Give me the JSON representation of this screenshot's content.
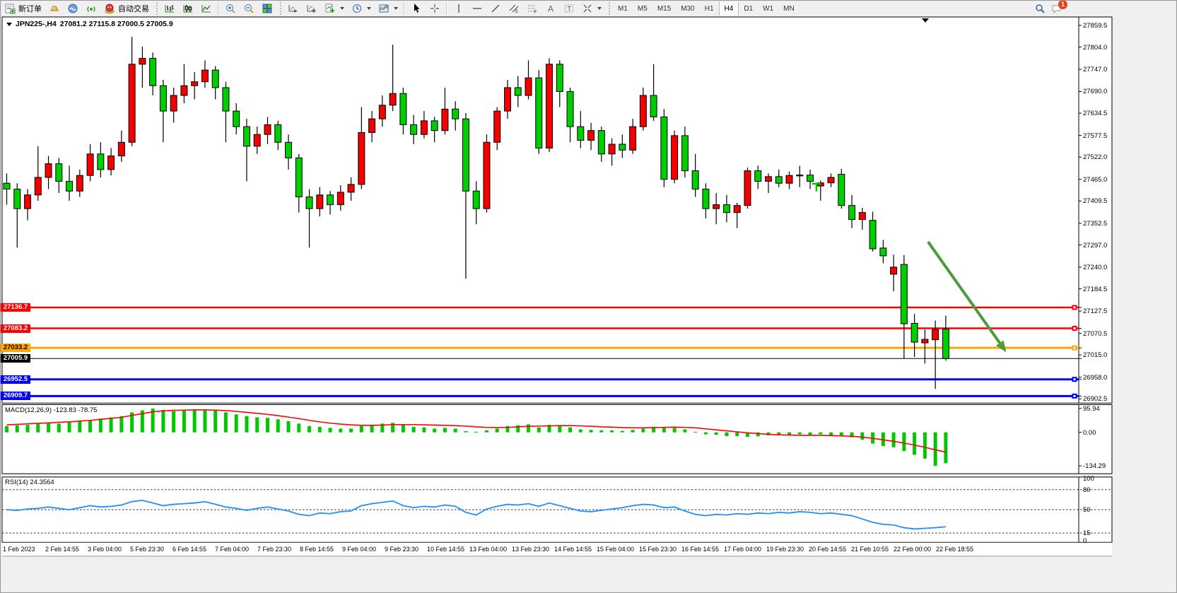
{
  "toolbar": {
    "new_order": "新订单",
    "autotrade": "自动交易",
    "timeframes": [
      "M1",
      "M5",
      "M15",
      "M30",
      "H1",
      "H4",
      "D1",
      "W1",
      "MN"
    ],
    "active_timeframe": "H4",
    "notification_count": "1",
    "icons": [
      "new-order-icon",
      "gold-ingot-icon",
      "accounts-icon",
      "signal-icon",
      "autotrade-icon",
      "bar-chart-icon",
      "candlestick-chart-icon",
      "line-chart-icon",
      "zoom-in-icon",
      "zoom-out-icon",
      "tile-windows-icon",
      "auto-scroll-icon",
      "chart-shift-icon",
      "indicators-icon",
      "periods-icon",
      "templates-icon",
      "cursor-icon",
      "crosshair-icon",
      "vertical-line-icon",
      "horizontal-line-icon",
      "trendline-icon",
      "channel-icon",
      "fibonacci-icon",
      "text-icon",
      "text-label-icon",
      "shapes-icon",
      "search-icon",
      "chat-icon"
    ]
  },
  "chart": {
    "symbol_label": "JPN225-,H4",
    "ohlc_text": "27081.2 27115.8 27000.5 27005.9",
    "colors": {
      "candle_up": "#f40000",
      "candle_down": "#00ce00",
      "candle_outline": "#000000",
      "macd_bar": "#00c800",
      "macd_signal": "#ff0000",
      "rsi_line": "#1e90ff",
      "arrow": "#4e9a3e",
      "marker_green": "#00cc00"
    }
  },
  "chart_data": {
    "type": "candlestick",
    "symbol": "JPN225-",
    "timeframe": "H4",
    "price_axis_ticks": [
      27859.5,
      27804.0,
      27747.0,
      27690.0,
      27634.5,
      27577.5,
      27522.0,
      27465.0,
      27409.5,
      27352.5,
      27297.0,
      27240.0,
      27184.5,
      27127.5,
      27070.5,
      27015.0,
      26958.0,
      26902.5
    ],
    "time_labels": [
      "1 Feb 2023",
      "2 Feb 14:55",
      "3 Feb 04:00",
      "5 Feb 23:30",
      "6 Feb 14:55",
      "7 Feb 04:00",
      "7 Feb 23:30",
      "8 Feb 14:55",
      "9 Feb 04:00",
      "9 Feb 23:30",
      "10 Feb 14:55",
      "13 Feb 04:00",
      "13 Feb 23:30",
      "14 Feb 14:55",
      "15 Feb 04:00",
      "15 Feb 23:30",
      "16 Feb 14:55",
      "17 Feb 04:00",
      "19 Feb 23:30",
      "20 Feb 14:55",
      "21 Feb 10:55",
      "22 Feb 00:00",
      "22 Feb 18:55"
    ],
    "hlines": [
      {
        "price": 27136.7,
        "label": "27136.7",
        "color": "#ff0000",
        "width": 2.5,
        "handles": true
      },
      {
        "price": 27083.2,
        "label": "27083.2",
        "color": "#ff0000",
        "width": 2.5,
        "handles": true
      },
      {
        "price": 27033.2,
        "label": "27033.2",
        "color": "#ffa500",
        "width": 3,
        "handles": true
      },
      {
        "price": 27005.9,
        "label": "27005.9",
        "color": "#000000",
        "width": 1,
        "handles": false,
        "role": "bid-line"
      },
      {
        "price": 26952.5,
        "label": "26952.5",
        "color": "#0000ff",
        "width": 3,
        "handles": true
      },
      {
        "price": 26909.7,
        "label": "26909.7",
        "color": "#0000ff",
        "width": 3,
        "handles": true
      }
    ],
    "candles": [
      [
        27455,
        27480,
        27400,
        27440
      ],
      [
        27440,
        27455,
        27290,
        27390
      ],
      [
        27390,
        27440,
        27360,
        27425
      ],
      [
        27425,
        27550,
        27410,
        27470
      ],
      [
        27470,
        27525,
        27440,
        27505
      ],
      [
        27505,
        27520,
        27430,
        27460
      ],
      [
        27460,
        27500,
        27410,
        27435
      ],
      [
        27435,
        27490,
        27420,
        27475
      ],
      [
        27475,
        27555,
        27460,
        27530
      ],
      [
        27530,
        27560,
        27470,
        27490
      ],
      [
        27490,
        27545,
        27475,
        27525
      ],
      [
        27525,
        27590,
        27510,
        27560
      ],
      [
        27560,
        27830,
        27550,
        27760
      ],
      [
        27760,
        27805,
        27700,
        27775
      ],
      [
        27775,
        27790,
        27680,
        27705
      ],
      [
        27705,
        27720,
        27560,
        27640
      ],
      [
        27640,
        27700,
        27610,
        27680
      ],
      [
        27680,
        27760,
        27660,
        27705
      ],
      [
        27705,
        27740,
        27670,
        27715
      ],
      [
        27715,
        27770,
        27700,
        27745
      ],
      [
        27745,
        27755,
        27670,
        27700
      ],
      [
        27700,
        27715,
        27560,
        27640
      ],
      [
        27640,
        27660,
        27580,
        27600
      ],
      [
        27600,
        27620,
        27460,
        27550
      ],
      [
        27550,
        27600,
        27530,
        27580
      ],
      [
        27580,
        27625,
        27555,
        27605
      ],
      [
        27605,
        27615,
        27540,
        27560
      ],
      [
        27560,
        27580,
        27490,
        27520
      ],
      [
        27520,
        27530,
        27380,
        27420
      ],
      [
        27420,
        27440,
        27290,
        27390
      ],
      [
        27390,
        27445,
        27370,
        27425
      ],
      [
        27425,
        27435,
        27375,
        27400
      ],
      [
        27400,
        27450,
        27385,
        27432
      ],
      [
        27432,
        27470,
        27410,
        27452
      ],
      [
        27452,
        27650,
        27440,
        27585
      ],
      [
        27585,
        27640,
        27560,
        27620
      ],
      [
        27620,
        27680,
        27600,
        27655
      ],
      [
        27655,
        27810,
        27640,
        27685
      ],
      [
        27685,
        27700,
        27580,
        27605
      ],
      [
        27605,
        27630,
        27555,
        27580
      ],
      [
        27580,
        27640,
        27570,
        27615
      ],
      [
        27615,
        27625,
        27560,
        27590
      ],
      [
        27590,
        27700,
        27580,
        27645
      ],
      [
        27645,
        27665,
        27590,
        27620
      ],
      [
        27620,
        27635,
        27210,
        27435
      ],
      [
        27435,
        27460,
        27350,
        27390
      ],
      [
        27390,
        27580,
        27380,
        27560
      ],
      [
        27560,
        27650,
        27540,
        27640
      ],
      [
        27640,
        27720,
        27620,
        27700
      ],
      [
        27700,
        27730,
        27650,
        27680
      ],
      [
        27680,
        27770,
        27670,
        27725
      ],
      [
        27725,
        27745,
        27530,
        27545
      ],
      [
        27545,
        27775,
        27535,
        27760
      ],
      [
        27760,
        27770,
        27650,
        27690
      ],
      [
        27690,
        27700,
        27560,
        27600
      ],
      [
        27600,
        27640,
        27545,
        27565
      ],
      [
        27565,
        27610,
        27540,
        27590
      ],
      [
        27590,
        27600,
        27510,
        27530
      ],
      [
        27530,
        27570,
        27500,
        27555
      ],
      [
        27555,
        27580,
        27520,
        27540
      ],
      [
        27540,
        27620,
        27530,
        27600
      ],
      [
        27600,
        27700,
        27590,
        27680
      ],
      [
        27680,
        27760,
        27615,
        27625
      ],
      [
        27625,
        27645,
        27445,
        27465
      ],
      [
        27465,
        27590,
        27455,
        27577
      ],
      [
        27577,
        27600,
        27470,
        27487
      ],
      [
        27487,
        27530,
        27420,
        27440
      ],
      [
        27440,
        27455,
        27365,
        27390
      ],
      [
        27390,
        27430,
        27350,
        27400
      ],
      [
        27400,
        27425,
        27355,
        27380
      ],
      [
        27380,
        27405,
        27340,
        27398
      ],
      [
        27398,
        27495,
        27390,
        27487
      ],
      [
        27487,
        27500,
        27440,
        27460
      ],
      [
        27460,
        27480,
        27430,
        27472
      ],
      [
        27472,
        27490,
        27445,
        27455
      ],
      [
        27455,
        27485,
        27440,
        27475
      ],
      [
        27475,
        27500,
        27445,
        27476
      ],
      [
        27476,
        27490,
        27440,
        27460
      ],
      [
        27448,
        27462,
        27410,
        27456
      ],
      [
        27456,
        27480,
        27445,
        27470
      ],
      [
        27478,
        27492,
        27390,
        27398
      ],
      [
        27398,
        27425,
        27340,
        27362
      ],
      [
        27362,
        27392,
        27336,
        27380
      ],
      [
        27360,
        27382,
        27280,
        27287
      ],
      [
        27289,
        27310,
        27250,
        27269
      ],
      [
        27222,
        27272,
        27178,
        27240
      ],
      [
        27247,
        27271,
        27006,
        27095
      ],
      [
        27096,
        27120,
        27010,
        27048
      ],
      [
        27046,
        27080,
        26993,
        27055
      ],
      [
        27054,
        27103,
        26928,
        27081
      ],
      [
        27081.2,
        27115.8,
        27000.5,
        27005.9
      ]
    ],
    "macd": {
      "label": "MACD(12,26,9) -123.83 -78.75",
      "scale_labels": [
        "95.94",
        "0.00",
        "-134.29"
      ],
      "scale_values": [
        95.94,
        0.0,
        -134.29
      ],
      "histogram": [
        25,
        28,
        30,
        34,
        38,
        35,
        40,
        45,
        50,
        55,
        60,
        65,
        80,
        88,
        95,
        90,
        85,
        88,
        90,
        92,
        88,
        80,
        72,
        65,
        60,
        58,
        52,
        45,
        35,
        25,
        22,
        18,
        15,
        15,
        25,
        30,
        35,
        38,
        30,
        22,
        20,
        15,
        18,
        15,
        5,
        2,
        8,
        15,
        25,
        28,
        32,
        20,
        30,
        28,
        20,
        12,
        10,
        8,
        8,
        6,
        10,
        15,
        22,
        20,
        18,
        12,
        2,
        -8,
        -10,
        -15,
        -15,
        -18,
        -16,
        -12,
        -12,
        -10,
        -8,
        -10,
        -8,
        -12,
        -14,
        -20,
        -30,
        -45,
        -55,
        -60,
        -75,
        -90,
        -105,
        -134.29,
        -123.83
      ],
      "signal": [
        30,
        32,
        34,
        36,
        38,
        40,
        42,
        45,
        48,
        52,
        56,
        60,
        68,
        75,
        82,
        86,
        88,
        89,
        90,
        90,
        89,
        87,
        84,
        80,
        76,
        72,
        67,
        61,
        55,
        48,
        42,
        37,
        33,
        30,
        28,
        28,
        29,
        31,
        31,
        31,
        30,
        29,
        28,
        27,
        25,
        22,
        20,
        19,
        20,
        22,
        24,
        25,
        26,
        27,
        27,
        26,
        24,
        22,
        21,
        19,
        18,
        18,
        19,
        20,
        21,
        20,
        18,
        14,
        10,
        6,
        2,
        -2,
        -5,
        -8,
        -10,
        -11,
        -12,
        -12,
        -12,
        -13,
        -14,
        -16,
        -19,
        -24,
        -30,
        -36,
        -43,
        -51,
        -60,
        -70,
        -78.75
      ]
    },
    "rsi": {
      "label": "RSI(14) 24.3564",
      "scale_labels": [
        "100",
        "80",
        "50",
        "15",
        "0"
      ],
      "levels": [
        80,
        50,
        15
      ],
      "values": [
        50,
        49,
        51,
        52,
        54,
        52,
        50,
        53,
        56,
        54,
        55,
        57,
        62,
        64,
        60,
        56,
        58,
        59,
        60,
        62,
        58,
        54,
        52,
        49,
        52,
        54,
        51,
        48,
        43,
        41,
        45,
        44,
        47,
        48,
        56,
        59,
        61,
        63,
        56,
        53,
        55,
        54,
        57,
        55,
        46,
        42,
        51,
        55,
        58,
        57,
        59,
        55,
        60,
        56,
        52,
        48,
        47,
        49,
        51,
        53,
        56,
        58,
        57,
        53,
        54,
        48,
        43,
        41,
        43,
        42,
        44,
        43,
        45,
        44,
        46,
        45,
        47,
        46,
        44,
        45,
        43,
        41,
        36,
        31,
        28,
        27,
        23,
        21,
        22,
        23,
        24.36
      ]
    },
    "annotations": [
      {
        "type": "arrow",
        "x1_index": 88.3,
        "price1": 27305,
        "x2_index": 95.8,
        "price2": 27022
      },
      {
        "type": "t-marker",
        "x_index": 77.6,
        "price": 27454
      }
    ]
  }
}
